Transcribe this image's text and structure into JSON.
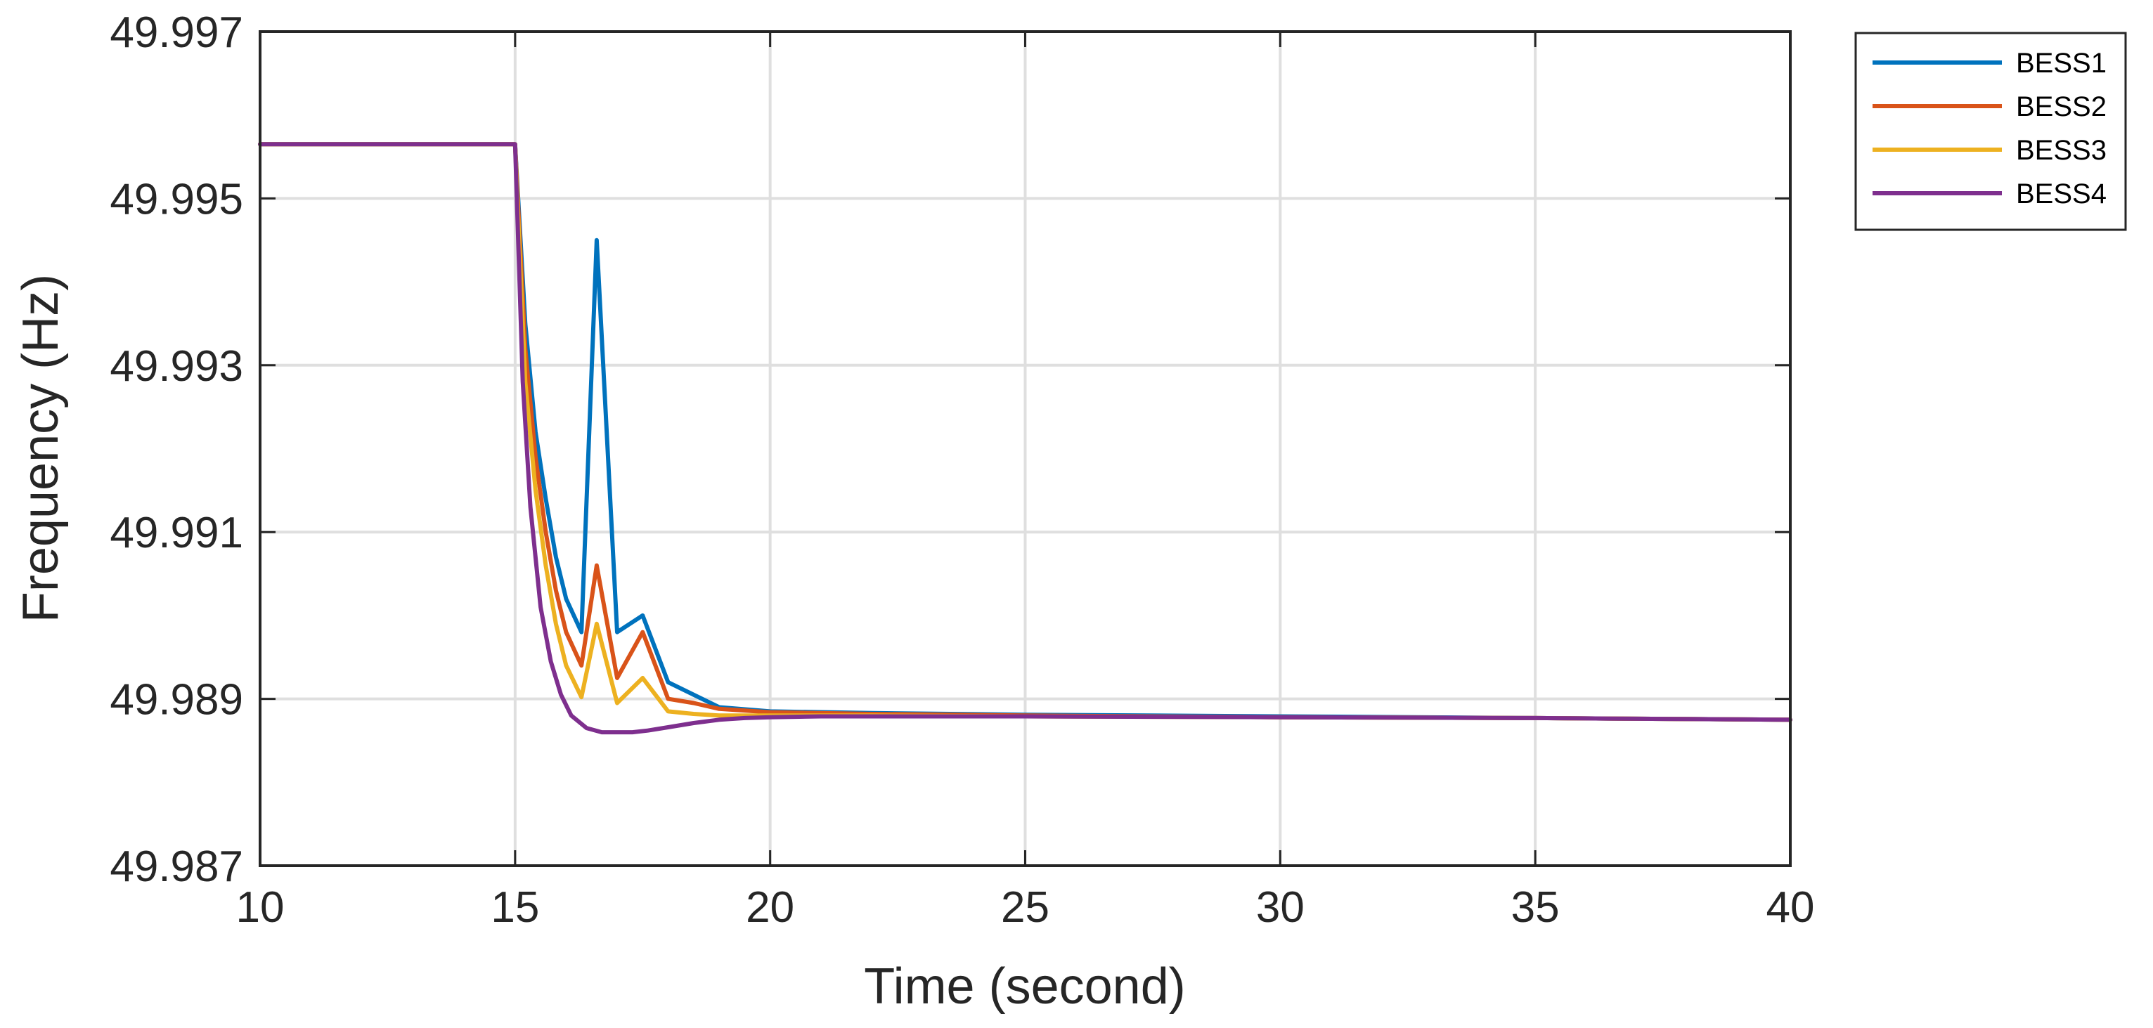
{
  "chart_data": {
    "type": "line",
    "title": "",
    "xlabel": "Time (second)",
    "ylabel": "Frequency (Hz)",
    "xlim": [
      10,
      40
    ],
    "ylim": [
      49.987,
      49.997
    ],
    "xticks": [
      "10",
      "15",
      "20",
      "25",
      "30",
      "35",
      "40"
    ],
    "yticks": [
      "49.987",
      "49.989",
      "49.991",
      "49.993",
      "49.995",
      "49.997"
    ],
    "grid": true,
    "legend_position": "outside-top-right",
    "series": [
      {
        "name": "BESS1",
        "color": "#0072BD",
        "x": [
          10,
          15,
          15.2,
          15.4,
          15.6,
          15.8,
          16,
          16.3,
          16.6,
          17,
          17.5,
          18,
          18.5,
          19,
          20,
          22,
          25,
          30,
          35,
          40
        ],
        "y": [
          49.99565,
          49.99565,
          49.9935,
          49.9922,
          49.9914,
          49.9907,
          49.9902,
          49.9898,
          49.9945,
          49.9898,
          49.99,
          49.9892,
          49.98905,
          49.9889,
          49.98885,
          49.98883,
          49.98881,
          49.98879,
          49.98877,
          49.98875
        ]
      },
      {
        "name": "BESS2",
        "color": "#D95319",
        "x": [
          10,
          15,
          15.2,
          15.4,
          15.6,
          15.8,
          16,
          16.3,
          16.6,
          17,
          17.5,
          18,
          18.5,
          19,
          20,
          22,
          25,
          30,
          35,
          40
        ],
        "y": [
          49.99565,
          49.99565,
          49.9932,
          49.9919,
          49.991,
          49.9903,
          49.9898,
          49.9894,
          49.9906,
          49.98925,
          49.9898,
          49.989,
          49.98895,
          49.98888,
          49.98884,
          49.98882,
          49.9888,
          49.98878,
          49.98877,
          49.98875
        ]
      },
      {
        "name": "BESS3",
        "color": "#EDB120",
        "x": [
          10,
          15,
          15.2,
          15.4,
          15.6,
          15.8,
          16,
          16.3,
          16.6,
          17,
          17.5,
          18,
          18.5,
          19,
          20,
          22,
          25,
          30,
          35,
          40
        ],
        "y": [
          49.99565,
          49.99565,
          49.9928,
          49.9915,
          49.9906,
          49.9899,
          49.9894,
          49.98902,
          49.9899,
          49.98895,
          49.98925,
          49.98885,
          49.98882,
          49.9888,
          49.9888,
          49.9888,
          49.98879,
          49.98878,
          49.98877,
          49.98875
        ]
      },
      {
        "name": "BESS4",
        "color": "#7E2F8E",
        "x": [
          10,
          15,
          15.15,
          15.3,
          15.5,
          15.7,
          15.9,
          16.1,
          16.4,
          16.7,
          17,
          17.3,
          17.6,
          18,
          18.5,
          19,
          19.5,
          20,
          21,
          22,
          25,
          30,
          35,
          40
        ],
        "y": [
          49.99565,
          49.99565,
          49.9928,
          49.9913,
          49.9901,
          49.98945,
          49.98905,
          49.9888,
          49.98865,
          49.9886,
          49.9886,
          49.9886,
          49.98862,
          49.98866,
          49.98871,
          49.98875,
          49.98877,
          49.98878,
          49.98879,
          49.98879,
          49.98879,
          49.98878,
          49.98877,
          49.98875
        ]
      }
    ]
  }
}
